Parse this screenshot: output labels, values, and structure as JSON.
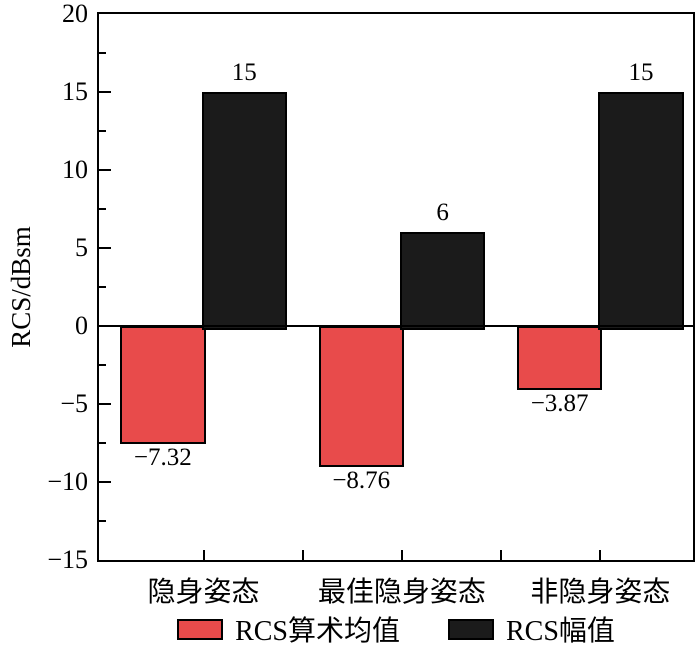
{
  "chart_data": {
    "type": "bar",
    "title": "",
    "xlabel": "",
    "ylabel": "RCS/dBsm",
    "ylim": [
      -15,
      20
    ],
    "ytick_major_step": 5,
    "ytick_minor_step": 2.5,
    "ytick_labels": [
      "20",
      "15",
      "10",
      "5",
      "0",
      "−5",
      "−10",
      "−15"
    ],
    "grid": false,
    "legend_position": "bottom",
    "categories": [
      "隐身姿态",
      "最佳隐身姿态",
      "非隐身姿态"
    ],
    "series": [
      {
        "name": "RCS算术均值",
        "color": "#e84b4b",
        "values": [
          -7.32,
          -8.76,
          -3.87
        ],
        "labels": [
          "−7.32",
          "−8.76",
          "−3.87"
        ]
      },
      {
        "name": "RCS幅值",
        "color": "#1b1b1b",
        "values": [
          15,
          6,
          15
        ],
        "labels": [
          "15",
          "6",
          "15"
        ]
      }
    ],
    "layout": {
      "group_center_fractions": [
        0.176,
        0.51,
        0.844
      ],
      "bar_width_fraction": 0.137
    }
  },
  "colors": {
    "axis": "#000000",
    "background": "#ffffff",
    "bar_outline": "#000000"
  }
}
